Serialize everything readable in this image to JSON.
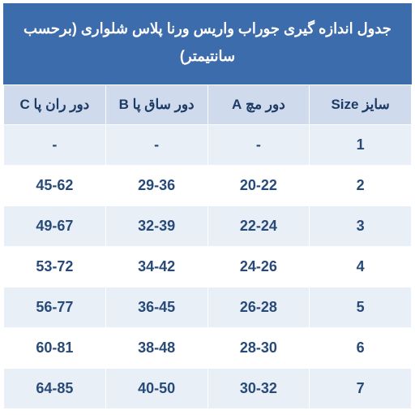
{
  "table": {
    "title": "جدول اندازه گیری جوراب واریس ورنا پلاس شلواری (برحسب سانتیمتر)",
    "title_bg": "#3c6cab",
    "title_color": "#ffffff",
    "title_fontsize": 18,
    "header_bg": "#cfdbec",
    "header_color": "#1d3b66",
    "row_alt_bg": "#e9eff7",
    "row_bg": "#ffffff",
    "cell_color": "#284a78",
    "columns": [
      {
        "label": "سایز Size"
      },
      {
        "label": "دور مچ A"
      },
      {
        "label": "دور ساق پا B"
      },
      {
        "label": "دور ران پا C"
      }
    ],
    "rows": [
      [
        "1",
        "-",
        "-",
        "-"
      ],
      [
        "2",
        "20-22",
        "29-36",
        "45-62"
      ],
      [
        "3",
        "22-24",
        "32-39",
        "49-67"
      ],
      [
        "4",
        "24-26",
        "34-42",
        "53-72"
      ],
      [
        "5",
        "26-28",
        "36-45",
        "56-77"
      ],
      [
        "6",
        "28-30",
        "38-48",
        "60-81"
      ],
      [
        "7",
        "30-32",
        "40-50",
        "64-85"
      ]
    ]
  }
}
